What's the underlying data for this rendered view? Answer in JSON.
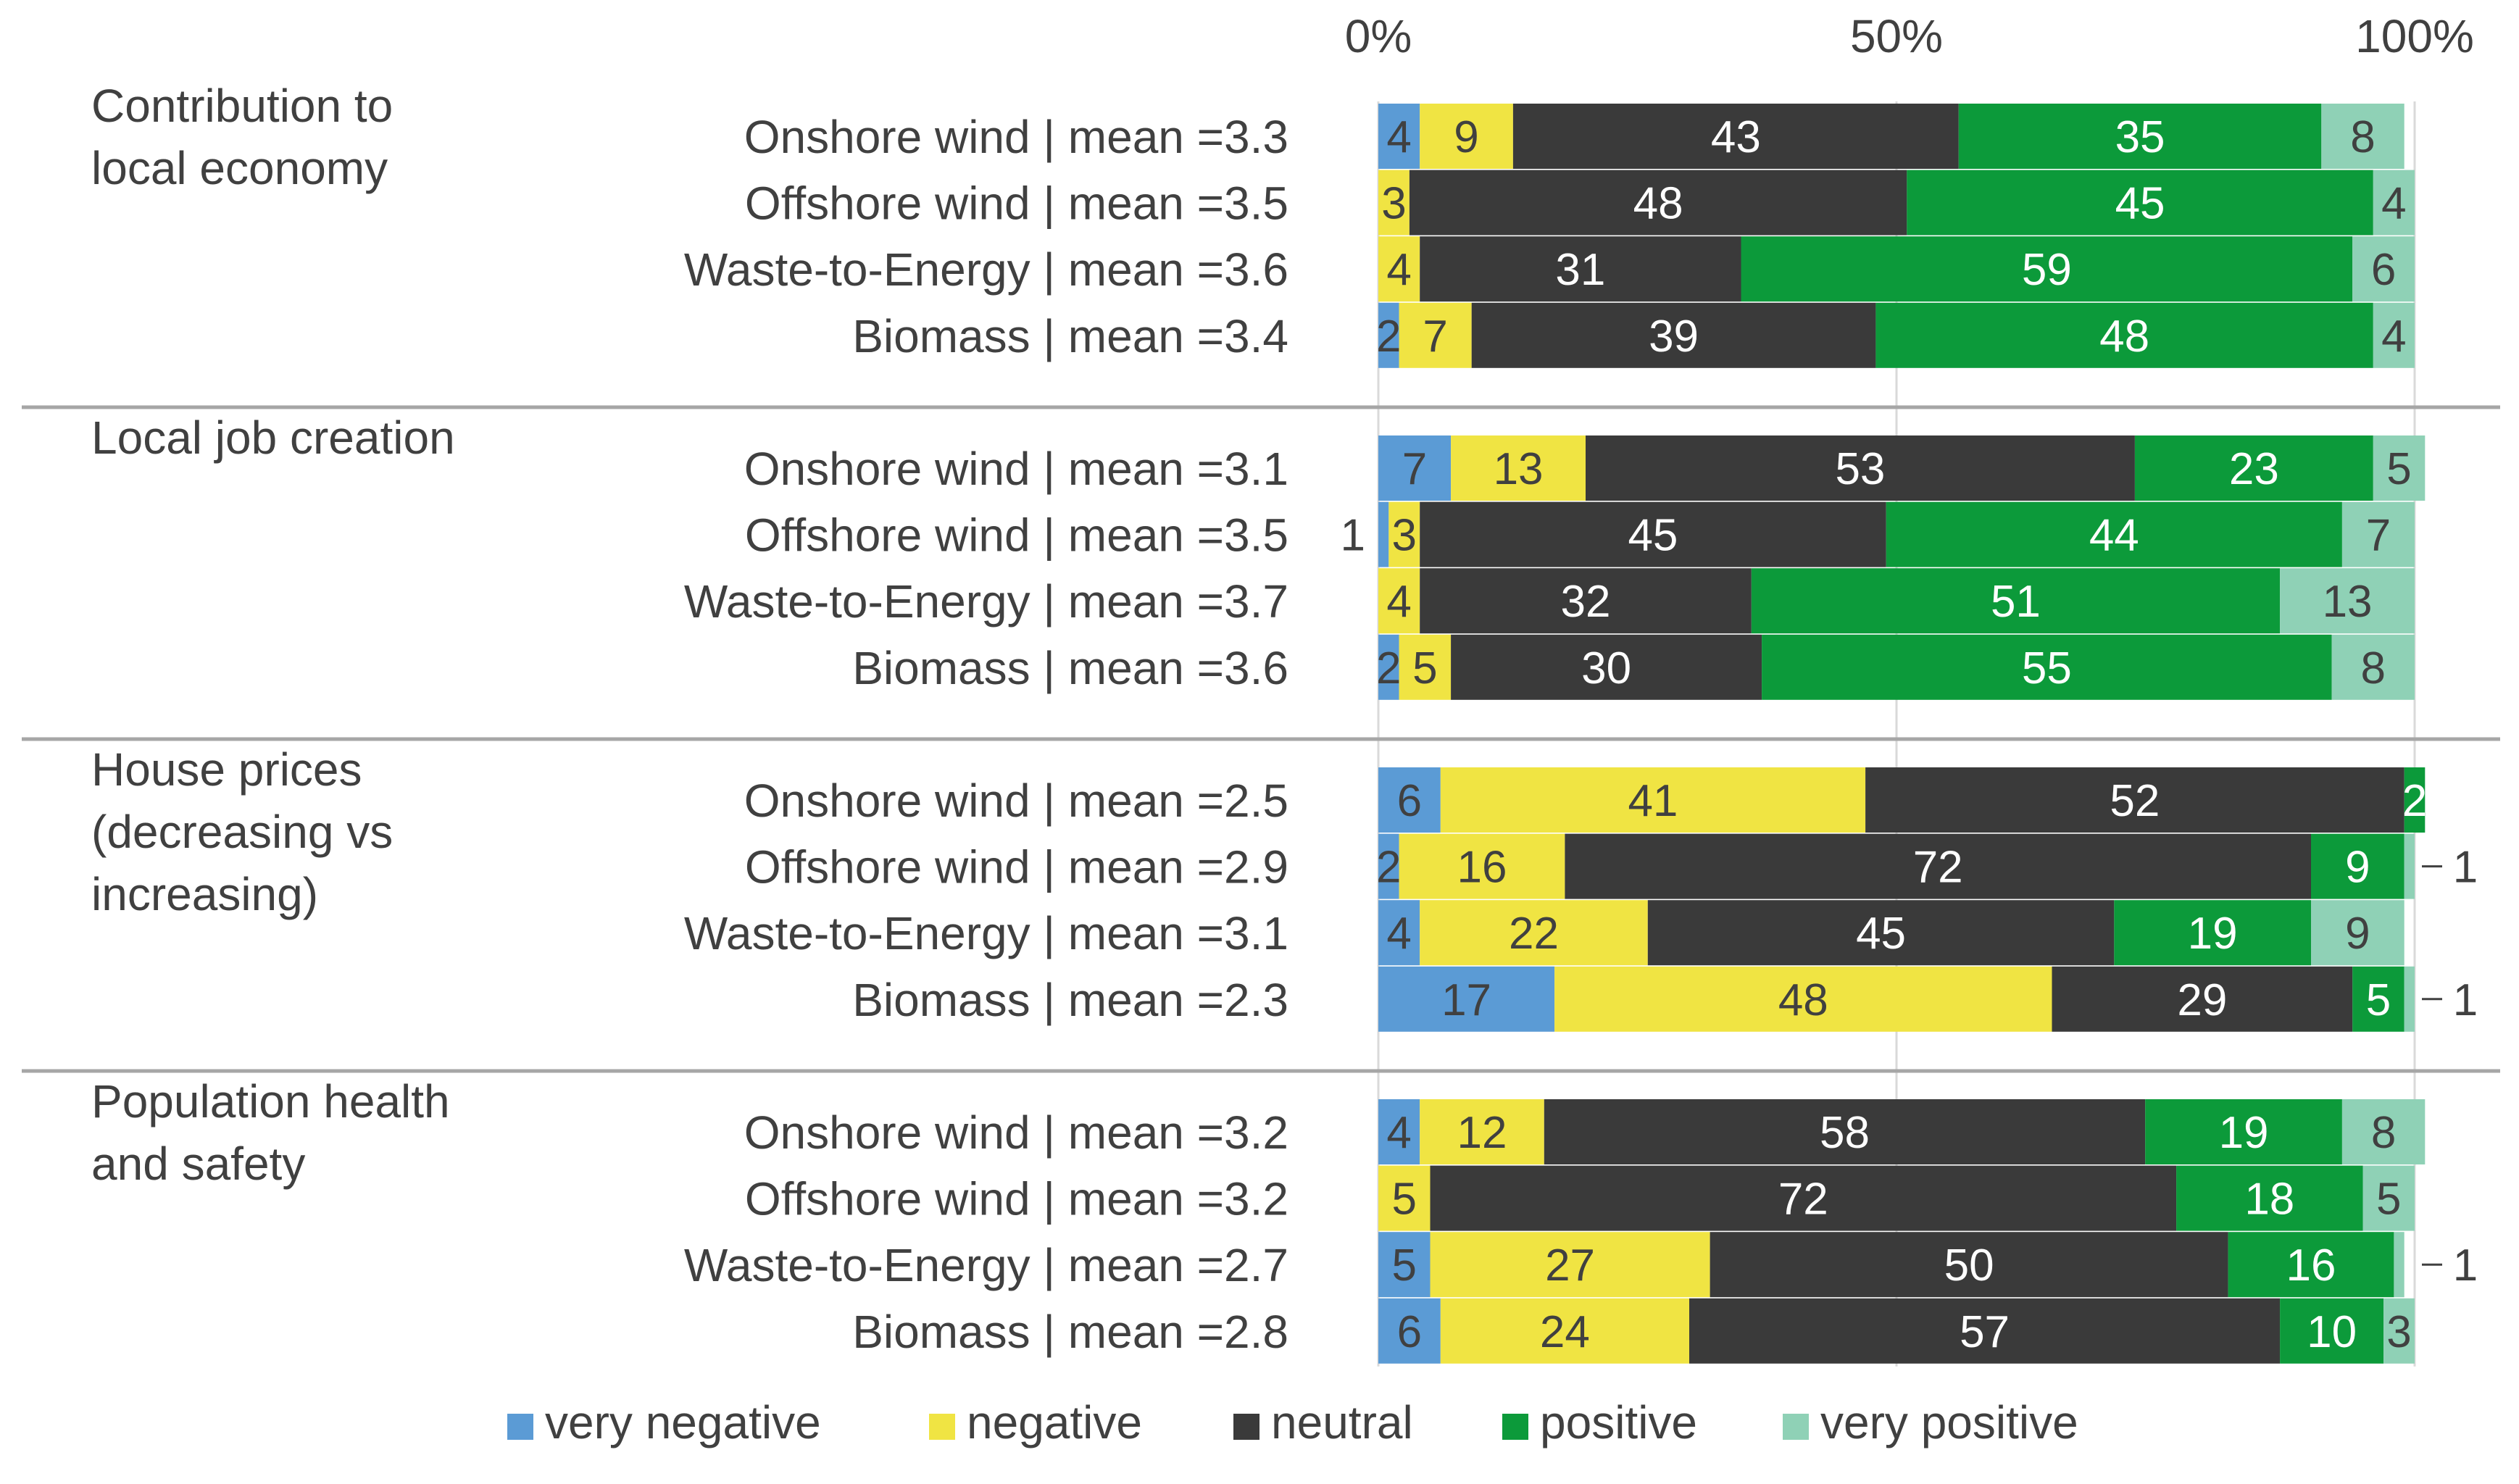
{
  "chart_data": {
    "type": "bar",
    "stacked": true,
    "orientation": "horizontal",
    "title": "",
    "xlabel": "",
    "ylabel": "",
    "xlim": [
      0,
      100
    ],
    "x_ticks": [
      "0%",
      "50%",
      "100%"
    ],
    "x_tick_values": [
      0,
      50,
      100
    ],
    "grid": true,
    "legend_position": "bottom",
    "categories_legend": [
      "very negative",
      "negative",
      "neutral",
      "positive",
      "very positive"
    ],
    "colors": {
      "very negative": "#5b9bd5",
      "negative": "#f0e443",
      "neutral": "#3a3a3a",
      "positive": "#0c9a3a",
      "very positive": "#8fd1b6",
      "gridline": "#d9d9d9",
      "separator": "#a6a6a6",
      "text_dark": "#404040",
      "text_light": "#ffffff"
    },
    "groups": [
      {
        "name": "Contribution to local economy",
        "name_lines": [
          "Contribution to",
          "local economy"
        ],
        "rows": [
          {
            "label": "Onshore wind | mean =3.3",
            "values": [
              4,
              9,
              43,
              35,
              8
            ]
          },
          {
            "label": "Offshore wind | mean =3.5",
            "values": [
              0,
              3,
              48,
              45,
              4
            ]
          },
          {
            "label": "Waste-to-Energy | mean =3.6",
            "values": [
              0,
              4,
              31,
              59,
              6
            ]
          },
          {
            "label": "Biomass | mean =3.4",
            "values": [
              2,
              7,
              39,
              48,
              4
            ]
          }
        ]
      },
      {
        "name": "Local job creation",
        "name_lines": [
          "Local job creation"
        ],
        "rows": [
          {
            "label": "Onshore wind | mean =3.1",
            "values": [
              7,
              13,
              53,
              23,
              5
            ]
          },
          {
            "label": "Offshore wind | mean =3.5",
            "values": [
              1,
              3,
              45,
              44,
              7
            ]
          },
          {
            "label": "Waste-to-Energy | mean =3.7",
            "values": [
              0,
              4,
              32,
              51,
              13
            ]
          },
          {
            "label": "Biomass | mean =3.6",
            "values": [
              2,
              5,
              30,
              55,
              8
            ]
          }
        ]
      },
      {
        "name": "House prices (decreasing vs increasing)",
        "name_lines": [
          "House prices",
          "(decreasing vs",
          "increasing)"
        ],
        "rows": [
          {
            "label": "Onshore wind | mean =2.5",
            "values": [
              6,
              41,
              52,
              2,
              0
            ]
          },
          {
            "label": "Offshore wind | mean =2.9",
            "values": [
              2,
              16,
              72,
              9,
              1
            ]
          },
          {
            "label": "Waste-to-Energy | mean =3.1",
            "values": [
              4,
              22,
              45,
              19,
              9
            ]
          },
          {
            "label": "Biomass | mean =2.3",
            "values": [
              17,
              48,
              29,
              5,
              1
            ]
          }
        ]
      },
      {
        "name": "Population health and safety",
        "name_lines": [
          "Population health",
          "and safety"
        ],
        "rows": [
          {
            "label": "Onshore wind | mean =3.2",
            "values": [
              4,
              12,
              58,
              19,
              8
            ]
          },
          {
            "label": "Offshore wind | mean =3.2",
            "values": [
              0,
              5,
              72,
              18,
              5
            ]
          },
          {
            "label": "Waste-to-Energy | mean =2.7",
            "values": [
              5,
              27,
              50,
              16,
              1
            ]
          },
          {
            "label": "Biomass | mean =2.8",
            "values": [
              6,
              24,
              57,
              10,
              3
            ]
          }
        ]
      }
    ]
  }
}
